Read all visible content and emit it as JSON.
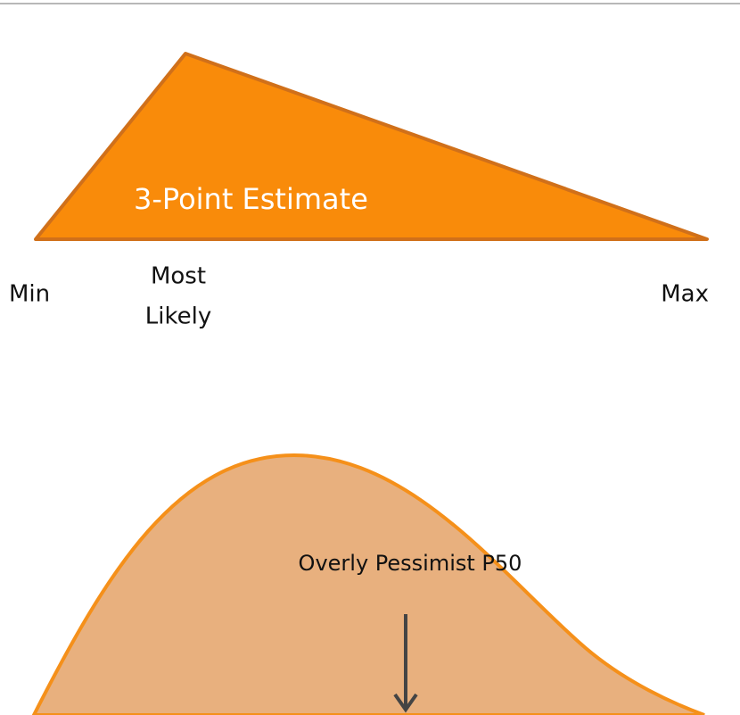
{
  "triangle": {
    "label": "3-Point Estimate",
    "min": "Min",
    "most_likely": [
      "Most",
      "Likely"
    ],
    "max": "Max"
  },
  "curve": {
    "label": "Overly Pessimist P50"
  }
}
